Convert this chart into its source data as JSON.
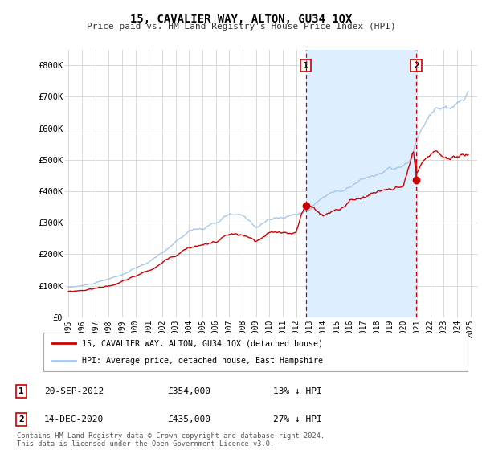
{
  "title": "15, CAVALIER WAY, ALTON, GU34 1QX",
  "subtitle": "Price paid vs. HM Land Registry's House Price Index (HPI)",
  "ylim": [
    0,
    850000
  ],
  "yticks": [
    0,
    100000,
    200000,
    300000,
    400000,
    500000,
    600000,
    700000,
    800000
  ],
  "ytick_labels": [
    "£0",
    "£100K",
    "£200K",
    "£300K",
    "£400K",
    "£500K",
    "£600K",
    "£700K",
    "£800K"
  ],
  "hpi_color": "#a8c8e8",
  "price_color": "#cc0000",
  "vline_color": "#cc0000",
  "shade_color": "#ddeeff",
  "marker1_year": 2012.72,
  "marker2_year": 2020.95,
  "marker1_price": 354000,
  "marker2_price": 435000,
  "legend_line1": "15, CAVALIER WAY, ALTON, GU34 1QX (detached house)",
  "legend_line2": "HPI: Average price, detached house, East Hampshire",
  "annotation1_date": "20-SEP-2012",
  "annotation1_amount": "£354,000",
  "annotation1_hpi": "13% ↓ HPI",
  "annotation2_date": "14-DEC-2020",
  "annotation2_amount": "£435,000",
  "annotation2_hpi": "27% ↓ HPI",
  "footer": "Contains HM Land Registry data © Crown copyright and database right 2024.\nThis data is licensed under the Open Government Licence v3.0.",
  "background_color": "#ffffff",
  "grid_color": "#cccccc",
  "xlim_left": 1994.75,
  "xlim_right": 2025.5
}
